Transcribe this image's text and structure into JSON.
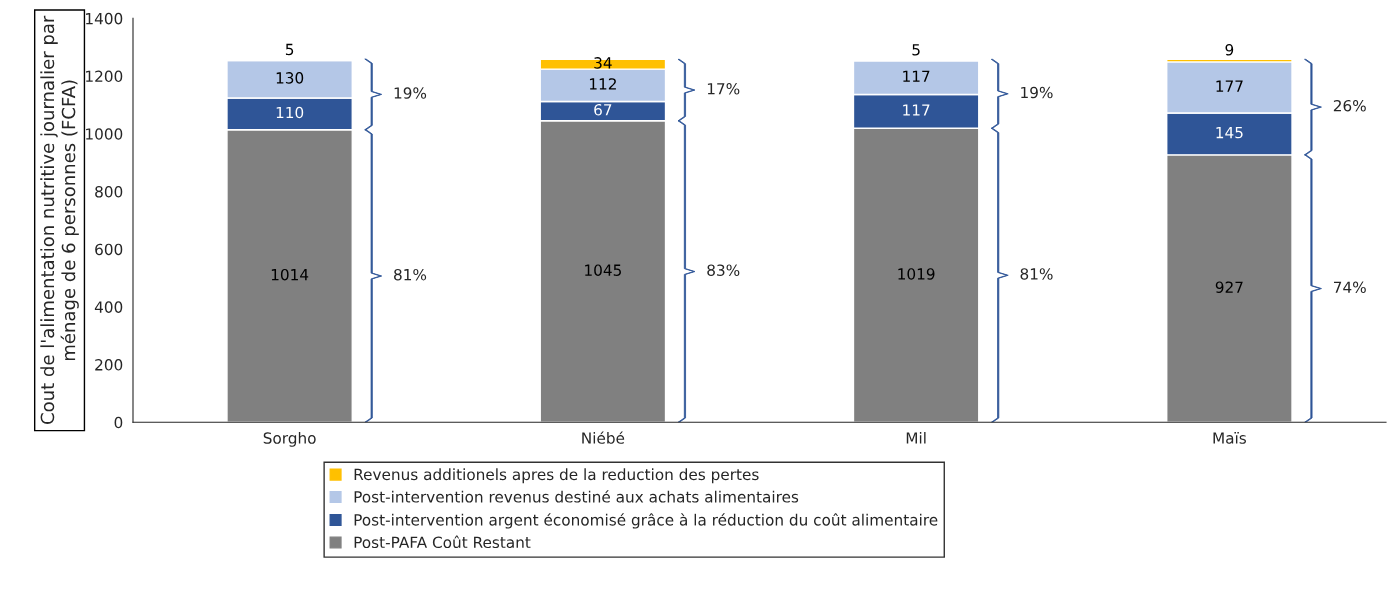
{
  "chart_data": {
    "type": "bar",
    "stacked": true,
    "ylabel": "Cout de l'alimentation nutritive journalier par ménage de 6 personnes (FCFA)",
    "categories": [
      "Sorgho",
      "Niébé",
      "Mil",
      "Maïs"
    ],
    "series": [
      {
        "name": "Post-PAFA Coût Restant",
        "color": "#808080",
        "values": [
          1014,
          1045,
          1019,
          927
        ]
      },
      {
        "name": "Post-intervention argent économisé grâce à la réduction du coût alimentaire",
        "color": "#2f5597",
        "values": [
          110,
          67,
          117,
          145
        ]
      },
      {
        "name": "Post-intervention revenus destiné aux achats alimentaires",
        "color": "#b4c7e7",
        "values": [
          130,
          112,
          117,
          177
        ]
      },
      {
        "name": "Revenus additionels apres de la reduction des pertes",
        "color": "#ffc000",
        "values": [
          5,
          34,
          5,
          9
        ]
      }
    ],
    "data_labels": true,
    "ylim": [
      0,
      1400
    ],
    "yticks": [
      0,
      200,
      400,
      600,
      800,
      1000,
      1200,
      1400
    ],
    "annotations": [
      "19%",
      "81%",
      "17%",
      "83%",
      "19%",
      "81%",
      "26%",
      "74%"
    ],
    "grid": false,
    "legend": "bottom"
  }
}
